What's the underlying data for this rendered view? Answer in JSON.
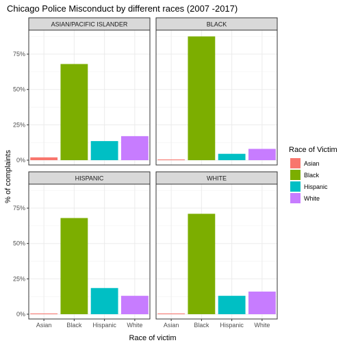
{
  "chart_data": {
    "type": "bar",
    "title": "Chicago Police Misconduct by different races (2007 -2017)",
    "xlabel": "Race of victim",
    "ylabel": "% of complaints",
    "categories": [
      "Asian",
      "Black",
      "Hispanic",
      "White"
    ],
    "y_ticks": [
      "0%",
      "25%",
      "50%",
      "75%"
    ],
    "ylim": [
      0,
      0.91
    ],
    "grid": true,
    "legend": {
      "title": "Race of Victim",
      "position": "right",
      "entries": [
        "Asian",
        "Black",
        "Hispanic",
        "White"
      ]
    },
    "colors": {
      "Asian": "#F8766D",
      "Black": "#7CAE00",
      "Hispanic": "#00BFC4",
      "White": "#C77CFF"
    },
    "facets": [
      {
        "name": "ASIAN/PACIFIC ISLANDER",
        "values": [
          0.02,
          0.68,
          0.135,
          0.17
        ]
      },
      {
        "name": "BLACK",
        "values": [
          0.005,
          0.875,
          0.045,
          0.08
        ]
      },
      {
        "name": "HISPANIC",
        "values": [
          0.005,
          0.68,
          0.185,
          0.13
        ]
      },
      {
        "name": "WHITE",
        "values": [
          0.005,
          0.71,
          0.13,
          0.16
        ]
      }
    ]
  }
}
